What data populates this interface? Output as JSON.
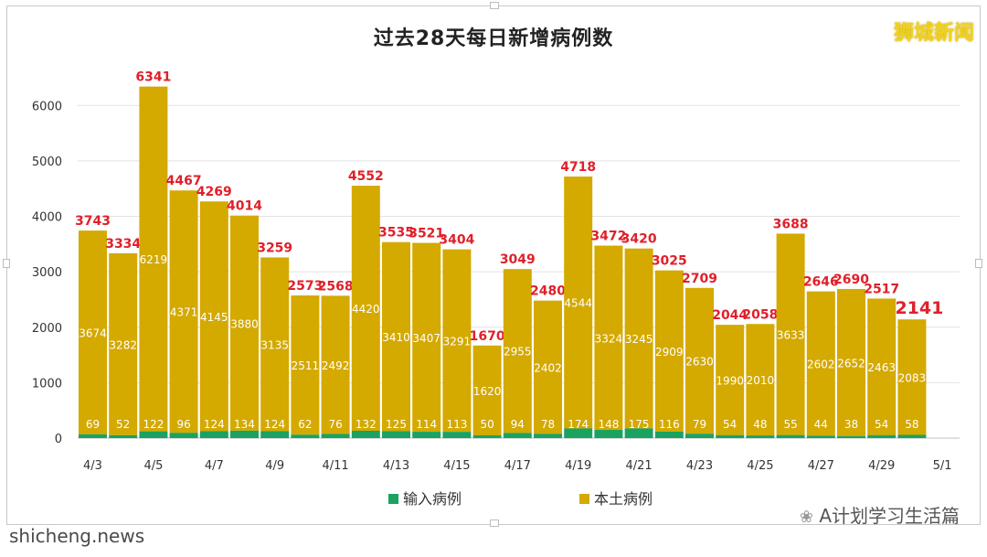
{
  "chart_data": {
    "type": "bar",
    "stacked": true,
    "title": "过去28天每日新增病例数",
    "categories": [
      "4/3",
      "4/4",
      "4/5",
      "4/6",
      "4/7",
      "4/8",
      "4/9",
      "4/10",
      "4/11",
      "4/12",
      "4/13",
      "4/14",
      "4/15",
      "4/16",
      "4/17",
      "4/18",
      "4/19",
      "4/20",
      "4/21",
      "4/22",
      "4/23",
      "4/24",
      "4/25",
      "4/26",
      "4/27",
      "4/28",
      "4/29",
      "4/30"
    ],
    "tick_labels": [
      "4/3",
      "4/5",
      "4/7",
      "4/9",
      "4/11",
      "4/13",
      "4/15",
      "4/17",
      "4/19",
      "4/21",
      "4/23",
      "4/25",
      "4/27",
      "4/29",
      "5/1"
    ],
    "series": [
      {
        "name": "输入病例",
        "color": "#1aa260",
        "values": [
          69,
          52,
          122,
          96,
          124,
          134,
          124,
          62,
          76,
          132,
          125,
          114,
          113,
          50,
          94,
          78,
          174,
          148,
          175,
          116,
          79,
          54,
          48,
          55,
          44,
          38,
          54,
          58
        ]
      },
      {
        "name": "本土病例",
        "color": "#d4a900",
        "values": [
          3674,
          3282,
          6219,
          4371,
          4145,
          3880,
          3135,
          2511,
          2492,
          4420,
          3410,
          3407,
          3291,
          1620,
          2955,
          2402,
          4544,
          3324,
          3245,
          2909,
          2630,
          1990,
          2010,
          3633,
          2602,
          2652,
          2463,
          2083
        ]
      }
    ],
    "totals": [
      3743,
      3334,
      6341,
      4467,
      4269,
      4014,
      3259,
      2573,
      2568,
      4552,
      3535,
      3521,
      3404,
      1670,
      3049,
      2480,
      4718,
      3472,
      3420,
      3025,
      2709,
      2044,
      2058,
      3688,
      2646,
      2690,
      2517,
      2141
    ],
    "ylim": [
      0,
      6500
    ],
    "yticks": [
      0,
      1000,
      2000,
      3000,
      4000,
      5000,
      6000
    ],
    "grid": true,
    "legend_position": "bottom"
  },
  "brand": "狮城新闻",
  "footer": {
    "left": "shicheng.news",
    "right": "A计划学习生活篇"
  }
}
